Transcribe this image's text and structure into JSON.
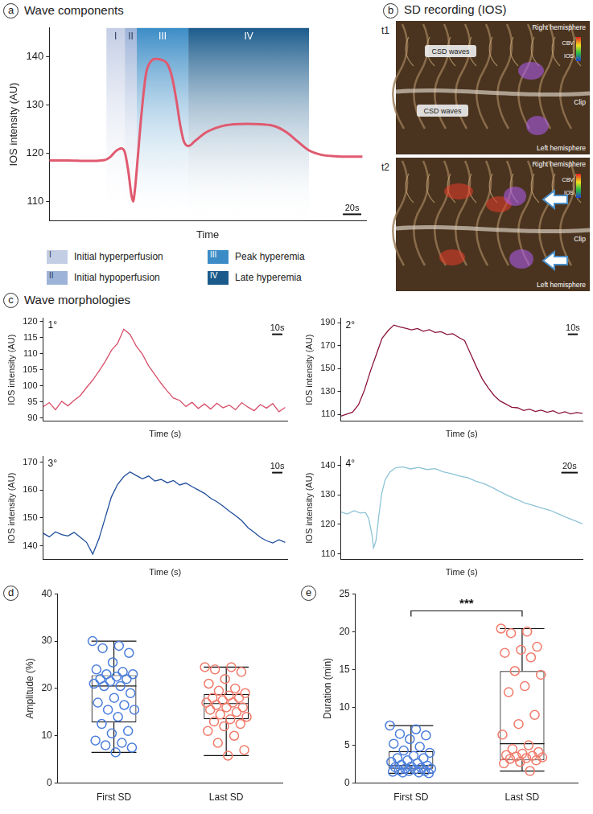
{
  "chart_data": [
    {
      "panel": "a",
      "type": "line",
      "title": "Wave components",
      "x_label": "Time",
      "y_label": "IOS intensity (AU)",
      "x": [
        0,
        20,
        40,
        60,
        66,
        72,
        78,
        82,
        86,
        89,
        91,
        93,
        96,
        100,
        105,
        110,
        115,
        122,
        128,
        133,
        138,
        142,
        146,
        151,
        158,
        170,
        185,
        200,
        215,
        230,
        245,
        258,
        270,
        282,
        295,
        310,
        325,
        340
      ],
      "values": [
        118.5,
        118.5,
        118.4,
        118.6,
        119.2,
        120.4,
        121.0,
        120.2,
        116.0,
        111.5,
        110.0,
        112.5,
        119.0,
        128.0,
        136.5,
        139.0,
        139.6,
        139.4,
        138.6,
        136.0,
        131.0,
        126.0,
        122.5,
        121.5,
        122.5,
        124.3,
        125.5,
        126.0,
        126.1,
        126.0,
        125.6,
        124.3,
        122.4,
        120.6,
        119.7,
        119.4,
        119.3,
        119.3
      ],
      "color": "#e05a70",
      "xlim": [
        0,
        344
      ],
      "ylim": [
        106,
        146
      ],
      "yticks": [
        110,
        120,
        130,
        140
      ],
      "grid": false,
      "tick_labels": "y",
      "scale_bar": {
        "value": 20,
        "label": "20s"
      },
      "phases": [
        {
          "label": "I",
          "name": "Initial hyperperfusion",
          "start": 62,
          "end": 82,
          "color": "#c3cde4"
        },
        {
          "label": "II",
          "name": "Initial hypoperfusion",
          "start": 82,
          "end": 95,
          "color": "#9db3d8"
        },
        {
          "label": "III",
          "name": "Peak hyperemia",
          "start": 95,
          "end": 151,
          "color": "#3b8cc6"
        },
        {
          "label": "IV",
          "name": "Late hyperemia",
          "start": 151,
          "end": 282,
          "color": "#1b5b8c"
        }
      ]
    },
    {
      "panel": "c",
      "title": "Wave morphologies",
      "subplots": [
        {
          "type": "line",
          "label": "1°",
          "x_label": "Time (s)",
          "y_label": "IOS intensity (AU)",
          "x": [
            0,
            6,
            12,
            18,
            24,
            30,
            36,
            42,
            48,
            54,
            60,
            66,
            72,
            78,
            84,
            90,
            96,
            102,
            108,
            114,
            120,
            126,
            132,
            138,
            144,
            150,
            156,
            162,
            168,
            174,
            180,
            186,
            192,
            198,
            204,
            210,
            216,
            222,
            228,
            234
          ],
          "values": [
            93.5,
            94.8,
            92.6,
            95.2,
            93.8,
            95.5,
            97.0,
            99.5,
            101.8,
            104.6,
            107.5,
            111.0,
            113.2,
            117.6,
            116.0,
            112.4,
            109.8,
            106.2,
            103.5,
            100.8,
            98.4,
            96.2,
            95.5,
            93.6,
            94.9,
            93.0,
            94.4,
            92.8,
            94.6,
            93.2,
            94.0,
            92.6,
            94.8,
            93.4,
            92.3,
            94.2,
            93.1,
            94.5,
            92.0,
            93.3
          ],
          "color": "#d9506b",
          "xlim": [
            0,
            236
          ],
          "ylim": [
            89,
            121
          ],
          "yticks": [
            90,
            95,
            100,
            105,
            110,
            115,
            120
          ],
          "grid": false,
          "tick_labels": "y",
          "scale_bar": {
            "value": 10,
            "label": "10s"
          }
        },
        {
          "type": "line",
          "label": "2°",
          "x_label": "Time (s)",
          "y_label": "IOS intensity (AU)",
          "x": [
            0,
            6,
            12,
            18,
            24,
            30,
            36,
            42,
            48,
            54,
            60,
            66,
            72,
            78,
            84,
            90,
            96,
            102,
            108,
            114,
            120,
            126,
            132,
            138,
            144,
            150,
            156,
            162,
            168,
            174,
            180,
            186,
            192,
            198,
            204,
            210,
            216,
            222,
            228,
            234,
            240,
            246
          ],
          "values": [
            108.5,
            110.2,
            112.0,
            118.5,
            131.0,
            147.5,
            162.0,
            176.5,
            183.0,
            188.0,
            186.5,
            185.2,
            183.8,
            185.0,
            182.6,
            183.9,
            181.5,
            182.2,
            179.8,
            180.4,
            177.2,
            174.5,
            163.0,
            151.5,
            141.0,
            133.2,
            126.5,
            121.8,
            119.0,
            116.2,
            115.8,
            113.4,
            114.6,
            112.5,
            113.8,
            111.9,
            113.2,
            110.8,
            112.4,
            110.5,
            111.6,
            110.9
          ],
          "color": "#8b1538",
          "xlim": [
            0,
            246
          ],
          "ylim": [
            104,
            194
          ],
          "yticks": [
            110,
            130,
            150,
            170,
            190
          ],
          "grid": false,
          "tick_labels": "y",
          "scale_bar": {
            "value": 10,
            "label": "10s"
          }
        },
        {
          "type": "line",
          "label": "3°",
          "x_label": "Time (s)",
          "y_label": "IOS intensity (AU)",
          "x": [
            0,
            6,
            12,
            18,
            24,
            30,
            36,
            42,
            48,
            54,
            60,
            66,
            72,
            78,
            84,
            90,
            96,
            102,
            108,
            114,
            120,
            126,
            132,
            138,
            144,
            150,
            156,
            162,
            168,
            174,
            180,
            186,
            192,
            198,
            204,
            210,
            216,
            222,
            228,
            234
          ],
          "values": [
            144.5,
            143.2,
            145.0,
            144.0,
            143.5,
            144.8,
            143.0,
            141.2,
            137.0,
            142.5,
            150.0,
            157.5,
            162.0,
            164.8,
            166.5,
            165.2,
            164.0,
            165.0,
            163.2,
            163.8,
            162.6,
            163.4,
            161.8,
            162.5,
            161.2,
            160.0,
            158.8,
            157.0,
            155.8,
            154.2,
            152.4,
            150.8,
            149.0,
            146.5,
            144.8,
            143.0,
            141.8,
            141.0,
            142.2,
            141.2
          ],
          "color": "#1f4e9a",
          "xlim": [
            0,
            236
          ],
          "ylim": [
            135,
            172
          ],
          "yticks": [
            140,
            150,
            160,
            170
          ],
          "grid": false,
          "tick_labels": "y",
          "scale_bar": {
            "value": 10,
            "label": "10s"
          }
        },
        {
          "type": "line",
          "label": "4°",
          "x_label": "Time (s)",
          "y_label": "IOS intensity (AU)",
          "x": [
            0,
            8,
            16,
            24,
            30,
            34,
            38,
            40,
            43,
            46,
            50,
            54,
            60,
            67,
            75,
            85,
            95,
            105,
            115,
            125,
            135,
            145,
            155,
            165,
            175,
            185,
            195,
            205,
            215,
            225,
            235,
            245,
            255,
            265,
            275,
            285,
            295
          ],
          "values": [
            124.2,
            123.5,
            124.6,
            123.8,
            124.0,
            122.0,
            116.5,
            112.0,
            114.5,
            122.0,
            130.5,
            135.0,
            137.8,
            139.2,
            139.5,
            138.8,
            139.3,
            138.6,
            138.9,
            137.8,
            137.2,
            136.4,
            135.8,
            134.6,
            133.8,
            132.5,
            131.0,
            129.6,
            128.4,
            127.2,
            126.4,
            125.5,
            124.8,
            123.6,
            122.4,
            121.3,
            120.2
          ],
          "color": "#8cc3d6",
          "xlim": [
            0,
            295
          ],
          "ylim": [
            108,
            143
          ],
          "yticks": [
            110,
            120,
            130,
            140
          ],
          "grid": false,
          "tick_labels": "y",
          "scale_bar": {
            "value": 20,
            "label": "20s"
          }
        }
      ]
    },
    {
      "panel": "d",
      "type": "box",
      "y_label": "Amplitude (%)",
      "categories": [
        "First SD",
        "Last SD"
      ],
      "boxes": [
        {
          "min": 6.5,
          "q1": 12.8,
          "median": 20.5,
          "q3": 22.8,
          "max": 30
        },
        {
          "min": 5.8,
          "q1": 13.5,
          "median": 16.8,
          "q3": 18.8,
          "max": 24.5
        }
      ],
      "points": [
        [
          30,
          29,
          28.5,
          27.5,
          25.5,
          24,
          23.5,
          23,
          23,
          22.5,
          22,
          22,
          21.5,
          21,
          20.5,
          20.5,
          19,
          18,
          17,
          16.5,
          15.5,
          15.5,
          14,
          12.5,
          11,
          10.5,
          9,
          8.5,
          8,
          7.5,
          6.5
        ],
        [
          24.5,
          24.5,
          24,
          23.5,
          22,
          21,
          20,
          19.5,
          19,
          18.5,
          18,
          18,
          17.5,
          17,
          17,
          16.5,
          16,
          16,
          15.5,
          15,
          14.5,
          14,
          13.5,
          13,
          12.5,
          12,
          11,
          10,
          8.5,
          7,
          5.8
        ]
      ],
      "colors": [
        "#4a7ddb",
        "#f07a6a"
      ],
      "ylim": [
        0,
        40
      ],
      "yticks": [
        0,
        10,
        20,
        30,
        40
      ],
      "grid": false
    },
    {
      "panel": "e",
      "type": "box",
      "y_label": "Duration (min)",
      "categories": [
        "First SD",
        "Last SD"
      ],
      "boxes": [
        {
          "min": 1.3,
          "q1": 1.9,
          "median": 2.3,
          "q3": 4.2,
          "max": 7.6
        },
        {
          "min": 1.6,
          "q1": 3.0,
          "median": 5.2,
          "q3": 14.8,
          "max": 20.4
        }
      ],
      "points": [
        [
          7.6,
          7.1,
          6.5,
          6.3,
          5.8,
          5.2,
          4.8,
          4.3,
          4.0,
          3.6,
          3.3,
          3.3,
          3.0,
          2.8,
          2.6,
          2.4,
          2.3,
          2.2,
          2.1,
          2.0,
          1.9,
          1.9,
          1.8,
          1.7,
          1.6,
          1.6,
          1.5,
          1.4,
          1.4,
          1.3
        ],
        [
          20.4,
          20.0,
          19.8,
          18.0,
          17.6,
          17.2,
          16.6,
          14.8,
          14.3,
          12.8,
          12.0,
          9.0,
          7.8,
          6.4,
          5.0,
          4.5,
          4.1,
          3.9,
          3.7,
          3.6,
          3.5,
          3.4,
          3.3,
          3.2,
          3.0,
          2.8,
          2.6,
          1.6
        ]
      ],
      "colors": [
        "#4a7ddb",
        "#f07a6a"
      ],
      "ylim": [
        0,
        25
      ],
      "yticks": [
        0,
        5,
        10,
        15,
        20,
        25
      ],
      "grid": false,
      "significance": {
        "label": "***",
        "pair": [
          "First SD",
          "Last SD"
        ]
      }
    }
  ],
  "panel_b": {
    "panel": "b",
    "title": "SD recording (IOS)",
    "frames": [
      {
        "label": "t1",
        "top_label": "Right hemisphere",
        "bottom_label": "Left hemisphere",
        "side_label": "Clip",
        "colorbar": [
          "CBV",
          "IOS"
        ],
        "callouts": [
          "CSD waves",
          "CSD waves"
        ]
      },
      {
        "label": "t2",
        "top_label": "Right hemisphere",
        "bottom_label": "Left hemisphere",
        "side_label": "Clip",
        "colorbar": [
          "CBV",
          "IOS"
        ]
      }
    ]
  }
}
